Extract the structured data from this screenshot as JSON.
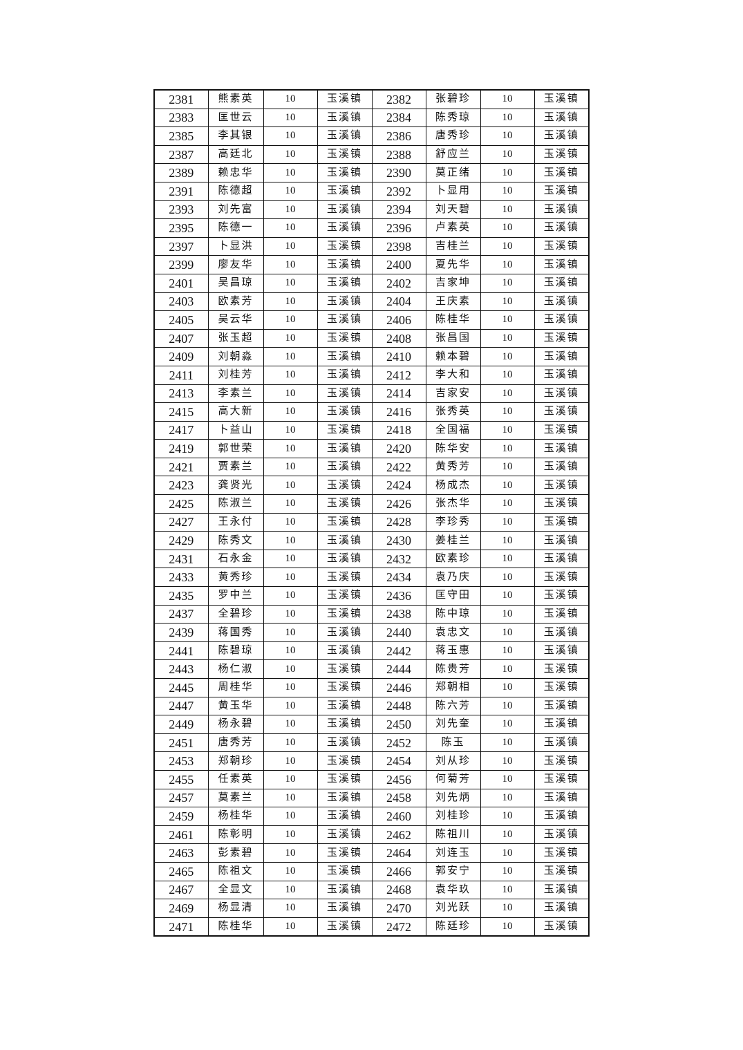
{
  "rows": [
    [
      "2381",
      "熊素英",
      "10",
      "玉溪镇",
      "2382",
      "张碧珍",
      "10",
      "玉溪镇"
    ],
    [
      "2383",
      "匡世云",
      "10",
      "玉溪镇",
      "2384",
      "陈秀琼",
      "10",
      "玉溪镇"
    ],
    [
      "2385",
      "李其银",
      "10",
      "玉溪镇",
      "2386",
      "唐秀珍",
      "10",
      "玉溪镇"
    ],
    [
      "2387",
      "高廷北",
      "10",
      "玉溪镇",
      "2388",
      "舒应兰",
      "10",
      "玉溪镇"
    ],
    [
      "2389",
      "赖忠华",
      "10",
      "玉溪镇",
      "2390",
      "莫正绪",
      "10",
      "玉溪镇"
    ],
    [
      "2391",
      "陈德超",
      "10",
      "玉溪镇",
      "2392",
      "卜显用",
      "10",
      "玉溪镇"
    ],
    [
      "2393",
      "刘先富",
      "10",
      "玉溪镇",
      "2394",
      "刘天碧",
      "10",
      "玉溪镇"
    ],
    [
      "2395",
      "陈德一",
      "10",
      "玉溪镇",
      "2396",
      "卢素英",
      "10",
      "玉溪镇"
    ],
    [
      "2397",
      "卜显洪",
      "10",
      "玉溪镇",
      "2398",
      "吉桂兰",
      "10",
      "玉溪镇"
    ],
    [
      "2399",
      "廖友华",
      "10",
      "玉溪镇",
      "2400",
      "夏先华",
      "10",
      "玉溪镇"
    ],
    [
      "2401",
      "吴昌琼",
      "10",
      "玉溪镇",
      "2402",
      "吉家坤",
      "10",
      "玉溪镇"
    ],
    [
      "2403",
      "欧素芳",
      "10",
      "玉溪镇",
      "2404",
      "王庆素",
      "10",
      "玉溪镇"
    ],
    [
      "2405",
      "吴云华",
      "10",
      "玉溪镇",
      "2406",
      "陈桂华",
      "10",
      "玉溪镇"
    ],
    [
      "2407",
      "张玉超",
      "10",
      "玉溪镇",
      "2408",
      "张昌国",
      "10",
      "玉溪镇"
    ],
    [
      "2409",
      "刘朝淼",
      "10",
      "玉溪镇",
      "2410",
      "赖本碧",
      "10",
      "玉溪镇"
    ],
    [
      "2411",
      "刘桂芳",
      "10",
      "玉溪镇",
      "2412",
      "李大和",
      "10",
      "玉溪镇"
    ],
    [
      "2413",
      "李素兰",
      "10",
      "玉溪镇",
      "2414",
      "吉家安",
      "10",
      "玉溪镇"
    ],
    [
      "2415",
      "高大新",
      "10",
      "玉溪镇",
      "2416",
      "张秀英",
      "10",
      "玉溪镇"
    ],
    [
      "2417",
      "卜益山",
      "10",
      "玉溪镇",
      "2418",
      "全国福",
      "10",
      "玉溪镇"
    ],
    [
      "2419",
      "郭世荣",
      "10",
      "玉溪镇",
      "2420",
      "陈华安",
      "10",
      "玉溪镇"
    ],
    [
      "2421",
      "贾素兰",
      "10",
      "玉溪镇",
      "2422",
      "黄秀芳",
      "10",
      "玉溪镇"
    ],
    [
      "2423",
      "龚贤光",
      "10",
      "玉溪镇",
      "2424",
      "杨成杰",
      "10",
      "玉溪镇"
    ],
    [
      "2425",
      "陈淑兰",
      "10",
      "玉溪镇",
      "2426",
      "张杰华",
      "10",
      "玉溪镇"
    ],
    [
      "2427",
      "王永付",
      "10",
      "玉溪镇",
      "2428",
      "李珍秀",
      "10",
      "玉溪镇"
    ],
    [
      "2429",
      "陈秀文",
      "10",
      "玉溪镇",
      "2430",
      "姜桂兰",
      "10",
      "玉溪镇"
    ],
    [
      "2431",
      "石永金",
      "10",
      "玉溪镇",
      "2432",
      "欧素珍",
      "10",
      "玉溪镇"
    ],
    [
      "2433",
      "黄秀珍",
      "10",
      "玉溪镇",
      "2434",
      "袁乃庆",
      "10",
      "玉溪镇"
    ],
    [
      "2435",
      "罗中兰",
      "10",
      "玉溪镇",
      "2436",
      "匡守田",
      "10",
      "玉溪镇"
    ],
    [
      "2437",
      "全碧珍",
      "10",
      "玉溪镇",
      "2438",
      "陈中琼",
      "10",
      "玉溪镇"
    ],
    [
      "2439",
      "蒋国秀",
      "10",
      "玉溪镇",
      "2440",
      "袁忠文",
      "10",
      "玉溪镇"
    ],
    [
      "2441",
      "陈碧琼",
      "10",
      "玉溪镇",
      "2442",
      "蒋玉惠",
      "10",
      "玉溪镇"
    ],
    [
      "2443",
      "杨仁淑",
      "10",
      "玉溪镇",
      "2444",
      "陈贵芳",
      "10",
      "玉溪镇"
    ],
    [
      "2445",
      "周桂华",
      "10",
      "玉溪镇",
      "2446",
      "郑朝相",
      "10",
      "玉溪镇"
    ],
    [
      "2447",
      "黄玉华",
      "10",
      "玉溪镇",
      "2448",
      "陈六芳",
      "10",
      "玉溪镇"
    ],
    [
      "2449",
      "杨永碧",
      "10",
      "玉溪镇",
      "2450",
      "刘先奎",
      "10",
      "玉溪镇"
    ],
    [
      "2451",
      "唐秀芳",
      "10",
      "玉溪镇",
      "2452",
      "陈玉",
      "10",
      "玉溪镇"
    ],
    [
      "2453",
      "郑朝珍",
      "10",
      "玉溪镇",
      "2454",
      "刘从珍",
      "10",
      "玉溪镇"
    ],
    [
      "2455",
      "任素英",
      "10",
      "玉溪镇",
      "2456",
      "何菊芳",
      "10",
      "玉溪镇"
    ],
    [
      "2457",
      "莫素兰",
      "10",
      "玉溪镇",
      "2458",
      "刘先炳",
      "10",
      "玉溪镇"
    ],
    [
      "2459",
      "杨桂华",
      "10",
      "玉溪镇",
      "2460",
      "刘桂珍",
      "10",
      "玉溪镇"
    ],
    [
      "2461",
      "陈彰明",
      "10",
      "玉溪镇",
      "2462",
      "陈祖川",
      "10",
      "玉溪镇"
    ],
    [
      "2463",
      "彭素碧",
      "10",
      "玉溪镇",
      "2464",
      "刘连玉",
      "10",
      "玉溪镇"
    ],
    [
      "2465",
      "陈祖文",
      "10",
      "玉溪镇",
      "2466",
      "郭安宁",
      "10",
      "玉溪镇"
    ],
    [
      "2467",
      "全显文",
      "10",
      "玉溪镇",
      "2468",
      "袁华玖",
      "10",
      "玉溪镇"
    ],
    [
      "2469",
      "杨显清",
      "10",
      "玉溪镇",
      "2470",
      "刘光跃",
      "10",
      "玉溪镇"
    ],
    [
      "2471",
      "陈桂华",
      "10",
      "玉溪镇",
      "2472",
      "陈廷珍",
      "10",
      "玉溪镇"
    ]
  ]
}
